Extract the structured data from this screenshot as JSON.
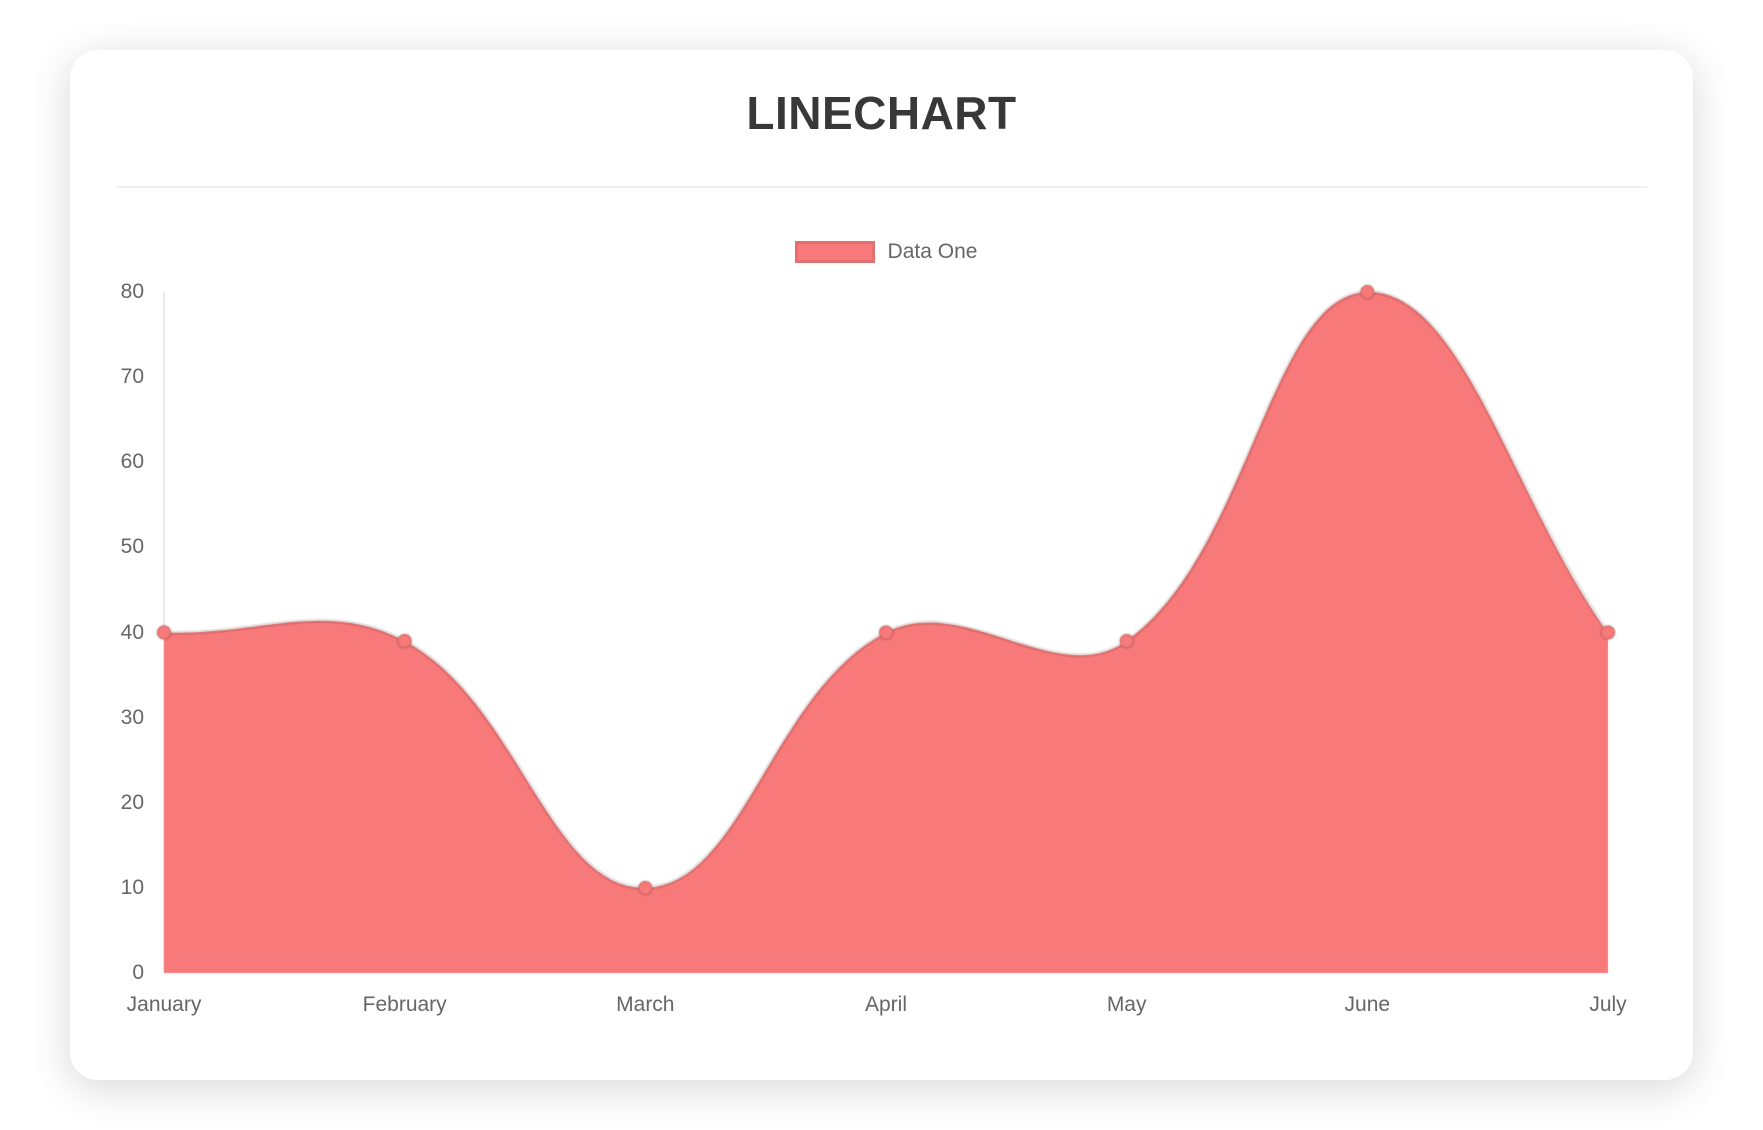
{
  "card": {
    "title": "LINECHART"
  },
  "chart_data": {
    "type": "line",
    "title": "LINECHART",
    "categories": [
      "January",
      "February",
      "March",
      "April",
      "May",
      "June",
      "July"
    ],
    "series": [
      {
        "name": "Data One",
        "values": [
          40,
          39,
          10,
          40,
          39,
          80,
          40
        ]
      }
    ],
    "xlabel": "",
    "ylabel": "",
    "ylim": [
      0,
      80
    ],
    "y_ticks": [
      0,
      10,
      20,
      30,
      40,
      50,
      60,
      70,
      80
    ],
    "grid": false,
    "area_fill": true,
    "bezier_tension": 0.4,
    "legend_position": "top",
    "colors": {
      "fill": "#f87979",
      "point": "#f87979",
      "line_stroke": "rgba(0,0,0,0.10)",
      "point_ring": "rgba(0,0,0,0.10)",
      "axis_line": "#e8e8e8",
      "tick_text": "#666666",
      "title_text": "#383838"
    }
  }
}
